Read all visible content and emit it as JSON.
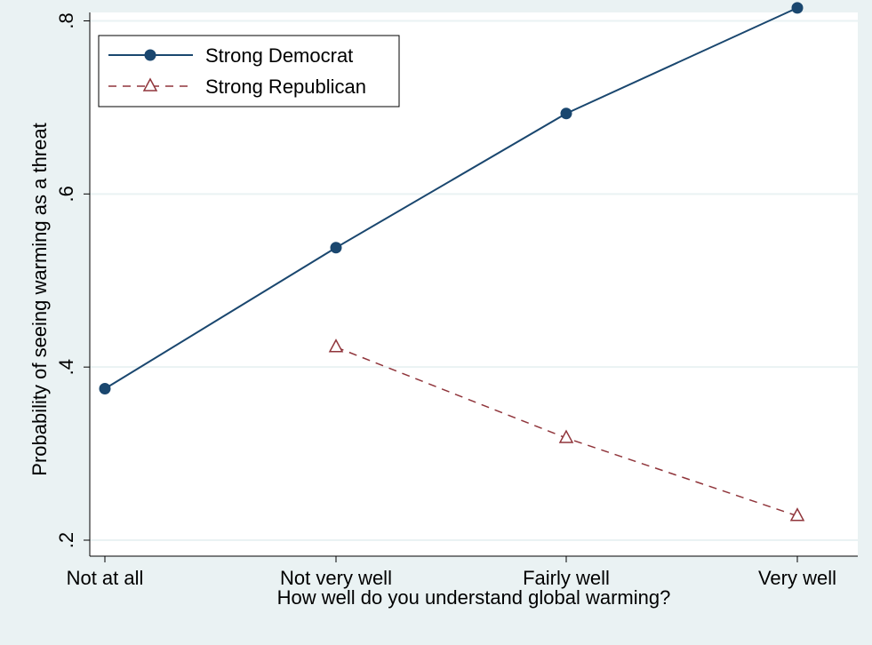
{
  "chart_data": {
    "type": "line",
    "title": "",
    "xlabel": "How well do you understand global warming?",
    "ylabel": "Probability of seeing warming as a threat",
    "categories": [
      "Not at all",
      "Not very well",
      "Fairly well",
      "Very well"
    ],
    "ylim": [
      0.2,
      0.82
    ],
    "yticks": [
      0.2,
      0.4,
      0.6,
      0.8
    ],
    "ytick_labels": [
      ".2",
      ".4",
      ".6",
      ".8"
    ],
    "grid": true,
    "legend_position": "top-left",
    "series": [
      {
        "name": "Strong Democrat",
        "values": [
          0.375,
          0.538,
          0.693,
          0.815
        ],
        "color": "#1a476f",
        "line_style": "solid",
        "marker": "filled-circle"
      },
      {
        "name": "Strong Republican",
        "values": [
          null,
          0.423,
          0.318,
          0.228
        ],
        "color": "#90353b",
        "line_style": "dashed",
        "marker": "hollow-triangle"
      }
    ],
    "colors": {
      "background": "#eaf2f3",
      "plot_area": "#ffffff",
      "gridline": "#eaf2f3"
    }
  }
}
